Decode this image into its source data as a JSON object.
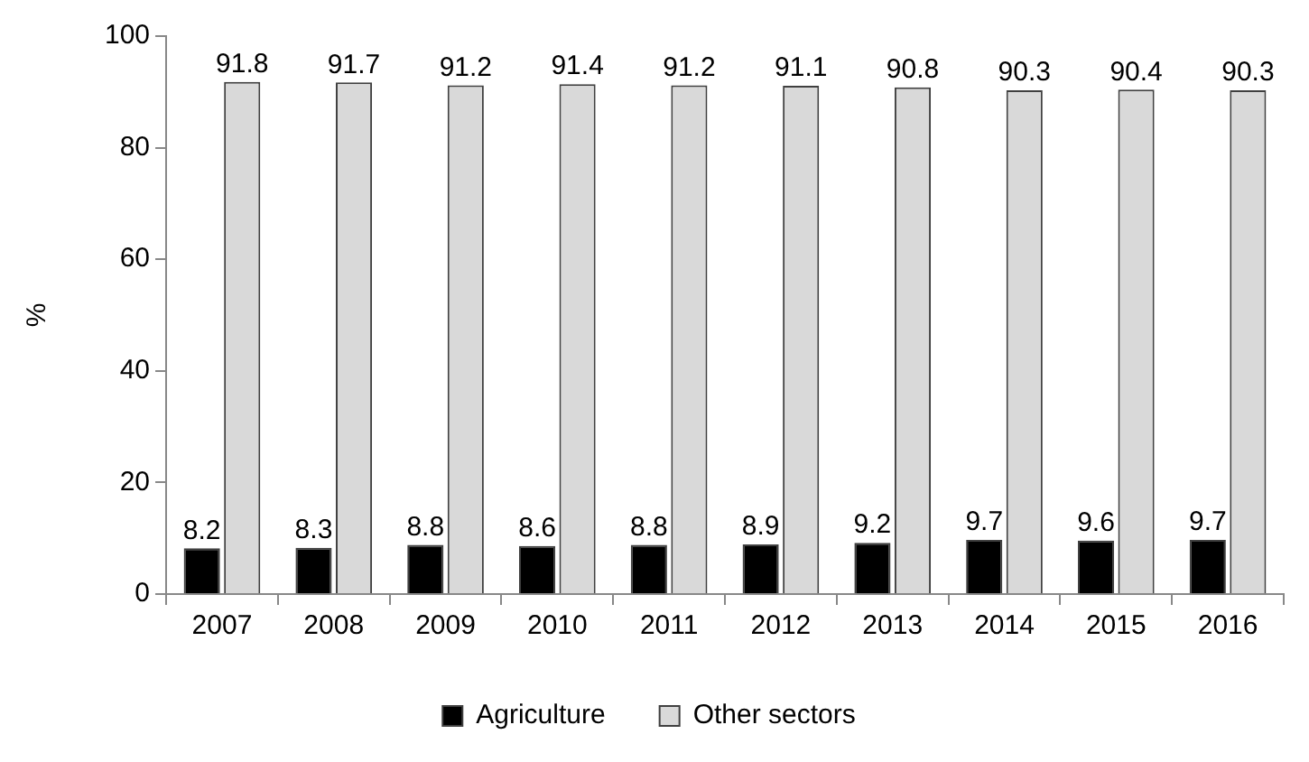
{
  "chart_data": {
    "type": "bar",
    "ylabel": "%",
    "categories": [
      "2007",
      "2008",
      "2009",
      "2010",
      "2011",
      "2012",
      "2013",
      "2014",
      "2015",
      "2016"
    ],
    "series": [
      {
        "name": "Agriculture",
        "color": "#000000",
        "values": [
          8.2,
          8.3,
          8.8,
          8.6,
          8.8,
          8.9,
          9.2,
          9.7,
          9.6,
          9.7
        ]
      },
      {
        "name": "Other sectors",
        "color": "#d9d9d9",
        "values": [
          91.8,
          91.7,
          91.2,
          91.4,
          91.2,
          91.1,
          90.8,
          90.3,
          90.4,
          90.3
        ]
      }
    ],
    "ylim": [
      0,
      100
    ],
    "yticks": [
      0,
      20,
      40,
      60,
      80,
      100
    ],
    "grid": false,
    "legend": "bottom",
    "data_labels": true
  }
}
